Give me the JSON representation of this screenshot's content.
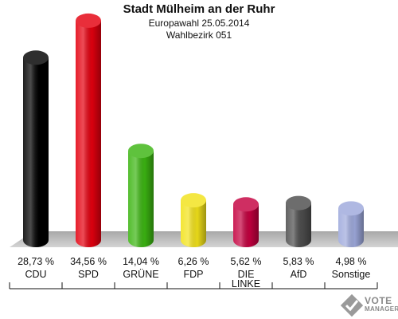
{
  "chart_data": {
    "type": "bar",
    "title": "Stadt Mülheim an der Ruhr",
    "subtitle_lines": [
      "Europawahl 25.05.2014",
      "Wahlbezirk 051"
    ],
    "categories": [
      "CDU",
      "SPD",
      "GRÜNE",
      "FDP",
      "DIE LINKE",
      "AfD",
      "Sonstige"
    ],
    "category_lines": [
      [
        "CDU"
      ],
      [
        "SPD"
      ],
      [
        "GRÜNE"
      ],
      [
        "FDP"
      ],
      [
        "DIE",
        "LINKE"
      ],
      [
        "AfD"
      ],
      [
        "Sonstige"
      ]
    ],
    "values": [
      28.73,
      34.56,
      14.04,
      6.26,
      5.62,
      5.83,
      4.98
    ],
    "value_labels": [
      "28,73 %",
      "34,56 %",
      "14,04 %",
      "6,26 %",
      "5,62 %",
      "5,83 %",
      "4,98 %"
    ],
    "colors": [
      "#000000",
      "#e4000f",
      "#3cb512",
      "#f2e21a",
      "#c4003f",
      "#4d4d4d",
      "#9ea9dc"
    ],
    "grid": false,
    "legend": "none"
  },
  "logo": {
    "name": "vote-manager-logo",
    "line1": "VOTE",
    "line2": "MANAGER"
  }
}
